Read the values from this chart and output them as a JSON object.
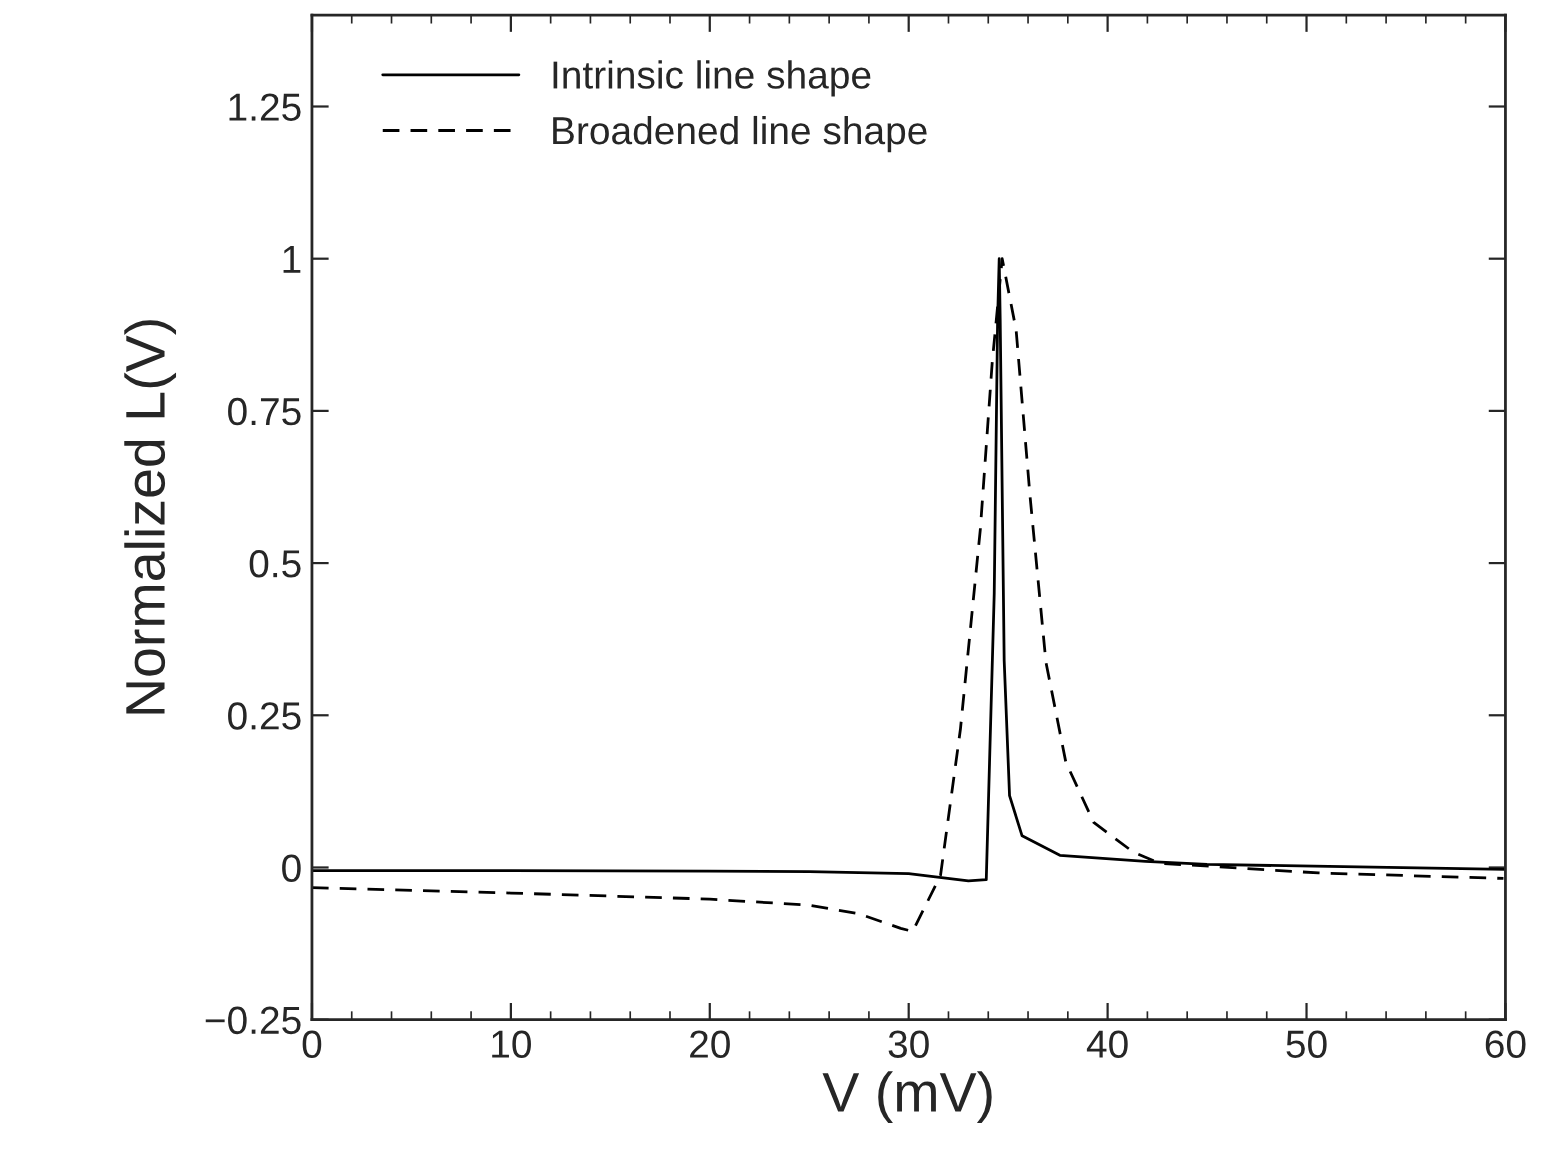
{
  "chart_data": {
    "type": "line",
    "xlabel": "V (mV)",
    "ylabel": "Normalized L(V)",
    "xlim": [
      0,
      60
    ],
    "xticks": [
      0,
      10,
      20,
      30,
      40,
      50,
      60
    ],
    "ylim": [
      -0.25,
      1.4
    ],
    "yticks": [
      {
        "value": -0.25,
        "label": "−0.25"
      },
      0,
      0.25,
      0.5,
      0.75,
      1,
      1.25
    ],
    "grid": false,
    "legend": "top left",
    "marker": "none",
    "series": [
      {
        "name": "Intrinsic line shape",
        "color": "#000000",
        "line_style": "solid",
        "x": [
          0,
          10,
          20,
          25,
          30,
          33.0,
          33.9,
          34.3,
          34.47,
          34.55,
          34.6,
          34.8,
          35.07,
          35.7,
          37.6,
          41.9,
          45,
          60
        ],
        "values": [
          -0.005,
          -0.005,
          -0.006,
          -0.007,
          -0.01,
          -0.022,
          -0.02,
          0.45,
          0.9,
          1.0,
          0.9,
          0.34,
          0.118,
          0.052,
          0.02,
          0.01,
          0.005,
          -0.003
        ]
      },
      {
        "name": "Broadened line shape",
        "color": "#000000",
        "line_style": "dashed",
        "x": [
          0,
          10,
          20,
          25,
          27.5,
          29.6,
          30.2,
          31.6,
          32.6,
          33.6,
          34.2,
          34.7,
          35.4,
          36.1,
          36.9,
          37.9,
          39.3,
          41.3,
          42.6,
          50.6,
          59.9
        ],
        "values": [
          -0.033,
          -0.042,
          -0.052,
          -0.062,
          -0.076,
          -0.1,
          -0.105,
          -0.013,
          0.227,
          0.555,
          0.83,
          1.0,
          0.883,
          0.61,
          0.337,
          0.173,
          0.074,
          0.025,
          0.007,
          -0.009,
          -0.018
        ]
      }
    ]
  }
}
